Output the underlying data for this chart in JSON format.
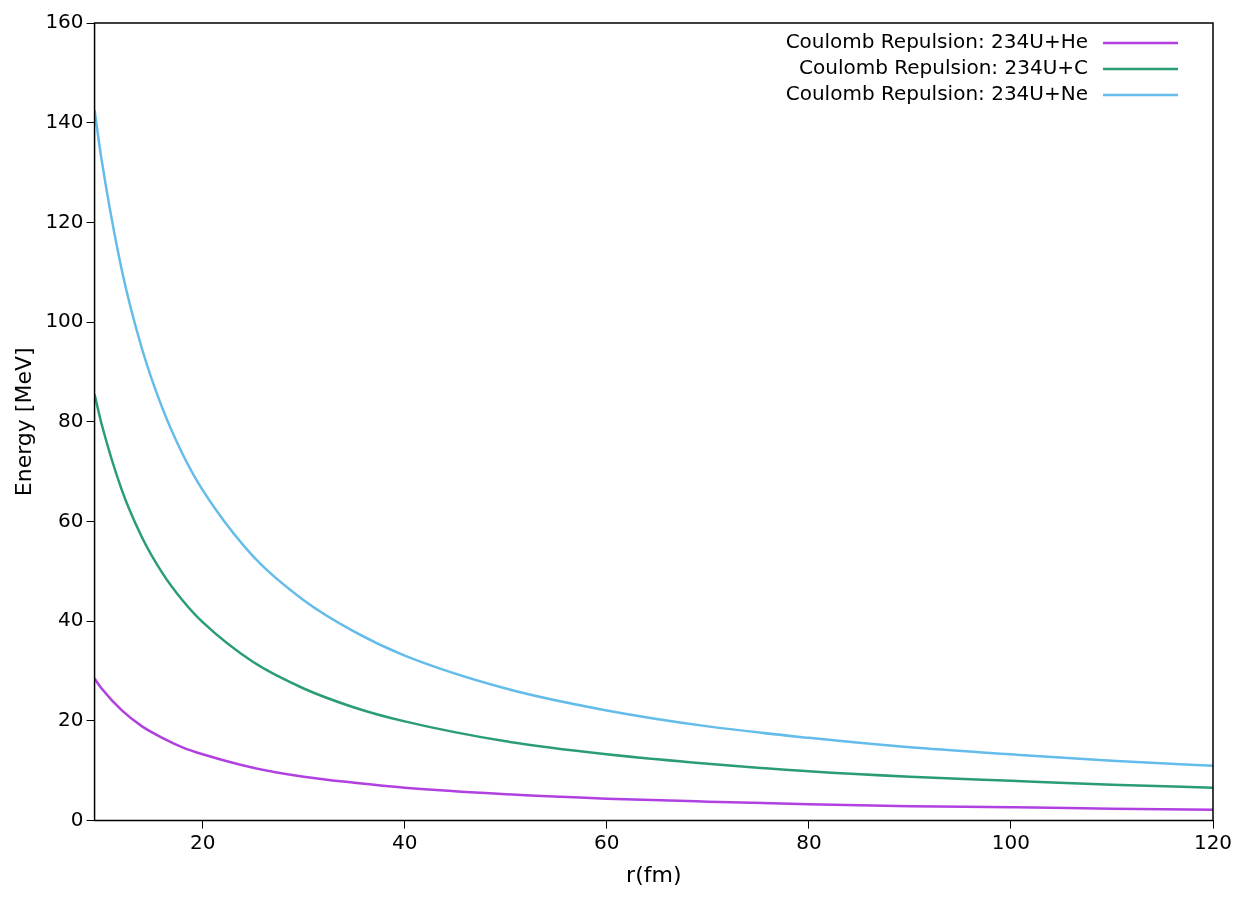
{
  "chart_data": {
    "type": "line",
    "xlabel": "r(fm)",
    "ylabel": "Energy [MeV]",
    "xlim": [
      9.3,
      120
    ],
    "xticks": [
      20,
      40,
      60,
      80,
      100,
      120
    ],
    "ylim": [
      0,
      160
    ],
    "yticks": [
      0,
      20,
      40,
      60,
      80,
      100,
      120,
      140,
      160
    ],
    "grid": false,
    "legend": "top right",
    "marker": "none",
    "line_style": "solid",
    "x": [
      9.3,
      10,
      12,
      14,
      16,
      18,
      20,
      25,
      30,
      35,
      40,
      50,
      60,
      70,
      80,
      90,
      100,
      110,
      120
    ],
    "series": [
      {
        "name": "Coulomb Repulsion: 234U+He",
        "color": "#b040e0",
        "values": [
          28.5,
          26.5,
          22.1,
          18.9,
          16.6,
          14.7,
          13.3,
          10.6,
          8.8,
          7.6,
          6.6,
          5.3,
          4.4,
          3.8,
          3.3,
          2.9,
          2.7,
          2.4,
          2.2
        ]
      },
      {
        "name": "Coulomb Repulsion: 234U+C",
        "color": "#2a9d72",
        "values": [
          85.5,
          79.5,
          66.3,
          56.8,
          49.7,
          44.2,
          39.8,
          31.8,
          26.5,
          22.7,
          19.9,
          15.9,
          13.3,
          11.4,
          9.9,
          8.8,
          8.0,
          7.2,
          6.6
        ]
      },
      {
        "name": "Coulomb Repulsion: 234U+Ne",
        "color": "#64bcea",
        "values": [
          142.5,
          132.5,
          110.4,
          94.6,
          82.8,
          73.6,
          66.3,
          53.0,
          44.2,
          37.9,
          33.1,
          26.5,
          22.1,
          18.9,
          16.6,
          14.7,
          13.3,
          12.0,
          11.0
        ]
      }
    ]
  }
}
